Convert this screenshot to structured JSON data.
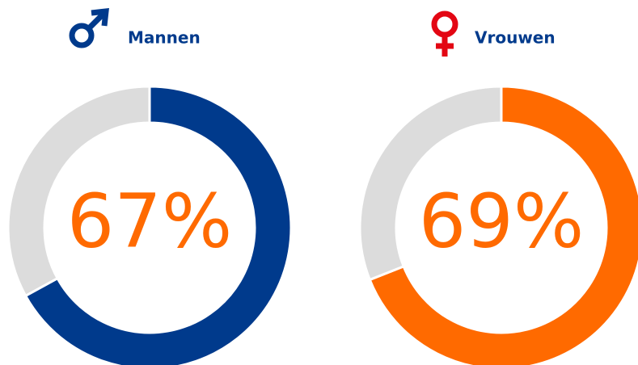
{
  "chart_data": [
    {
      "type": "donut",
      "title": "Mannen",
      "values": [
        67,
        33
      ],
      "colors": [
        "#003a8c",
        "#dcdcdc"
      ],
      "value_labels": [
        "67%",
        null
      ]
    },
    {
      "type": "donut",
      "title": "Vrouwen",
      "values": [
        69,
        31
      ],
      "colors": [
        "#ff6a00",
        "#dcdcdc"
      ],
      "value_labels": [
        "69%",
        null
      ]
    }
  ]
}
